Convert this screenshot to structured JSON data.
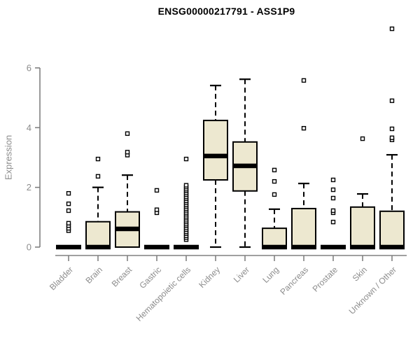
{
  "header": {
    "title": "ENSG00000217791 - ASS1P9"
  },
  "chart_data": {
    "type": "boxplot",
    "title": "ENSG00000217791 - ASS1P9",
    "xlabel": "",
    "ylabel": "Expression",
    "ylim": [
      0,
      6
    ],
    "yticks": [
      0,
      2,
      4,
      6
    ],
    "grid": false,
    "legend": false,
    "categories": [
      "Bladder",
      "Brain",
      "Breast",
      "Gastric",
      "Hematopoietic cells",
      "Kidney",
      "Liver",
      "Lung",
      "Pancreas",
      "Prostate",
      "Skin",
      "Unknown / Other"
    ],
    "boxes": [
      {
        "name": "Bladder",
        "whisker_low": 0,
        "q1": 0,
        "median": 0,
        "q3": 0,
        "whisker_high": 0,
        "outliers": [
          0.55,
          0.63,
          0.72,
          0.8,
          1.22,
          1.45,
          1.8
        ]
      },
      {
        "name": "Brain",
        "whisker_low": 0,
        "q1": 0,
        "median": 0,
        "q3": 0.85,
        "whisker_high": 2.0,
        "outliers": [
          2.37,
          2.95
        ]
      },
      {
        "name": "Breast",
        "whisker_low": 0,
        "q1": 0,
        "median": 0.61,
        "q3": 1.18,
        "whisker_high": 2.41,
        "outliers": [
          3.08,
          3.18,
          3.8
        ]
      },
      {
        "name": "Gastric",
        "whisker_low": 0,
        "q1": 0,
        "median": 0,
        "q3": 0,
        "whisker_high": 0,
        "outliers": [
          1.15,
          1.25,
          1.9
        ]
      },
      {
        "name": "Hematopoietic cells",
        "whisker_low": 0,
        "q1": 0,
        "median": 0,
        "q3": 0,
        "whisker_high": 0,
        "outliers": [
          0.25,
          0.32,
          0.38,
          0.45,
          0.51,
          0.58,
          0.64,
          0.71,
          0.77,
          0.84,
          0.9,
          0.97,
          1.03,
          1.1,
          1.16,
          1.23,
          1.29,
          1.36,
          1.42,
          1.49,
          1.55,
          1.62,
          1.68,
          1.75,
          1.81,
          1.88,
          1.94,
          2.01,
          2.07,
          2.95
        ]
      },
      {
        "name": "Kidney",
        "whisker_low": 0,
        "q1": 2.25,
        "median": 3.05,
        "q3": 4.24,
        "whisker_high": 5.41,
        "outliers": []
      },
      {
        "name": "Liver",
        "whisker_low": 0,
        "q1": 1.88,
        "median": 2.72,
        "q3": 3.52,
        "whisker_high": 5.62,
        "outliers": []
      },
      {
        "name": "Lung",
        "whisker_low": 0,
        "q1": 0,
        "median": 0,
        "q3": 0.63,
        "whisker_high": 1.27,
        "outliers": [
          1.76,
          2.2,
          2.58
        ]
      },
      {
        "name": "Pancreas",
        "whisker_low": 0,
        "q1": 0,
        "median": 0,
        "q3": 1.29,
        "whisker_high": 2.13,
        "outliers": [
          3.98,
          5.58
        ]
      },
      {
        "name": "Prostate",
        "whisker_low": 0,
        "q1": 0,
        "median": 0,
        "q3": 0,
        "whisker_high": 0,
        "outliers": [
          0.84,
          1.15,
          1.22,
          1.64,
          1.92,
          2.25
        ]
      },
      {
        "name": "Skin",
        "whisker_low": 0,
        "q1": 0,
        "median": 0,
        "q3": 1.34,
        "whisker_high": 1.78,
        "outliers": [
          3.63
        ]
      },
      {
        "name": "Unknown / Other",
        "whisker_low": 0,
        "q1": 0,
        "median": 0,
        "q3": 1.2,
        "whisker_high": 3.09,
        "outliers": [
          3.59,
          3.66,
          3.96,
          4.9,
          7.31
        ]
      }
    ],
    "colors": {
      "box_fill": "#EDE8D0",
      "box_stroke": "#000000",
      "median": "#000000",
      "whisker": "#000000",
      "outlier_fill": "#FFFFFF",
      "outlier_stroke": "#000000",
      "axis_line": "#808080",
      "axis_text": "#8C8C8C",
      "title_text": "#000000",
      "background": "#FFFFFF"
    }
  }
}
